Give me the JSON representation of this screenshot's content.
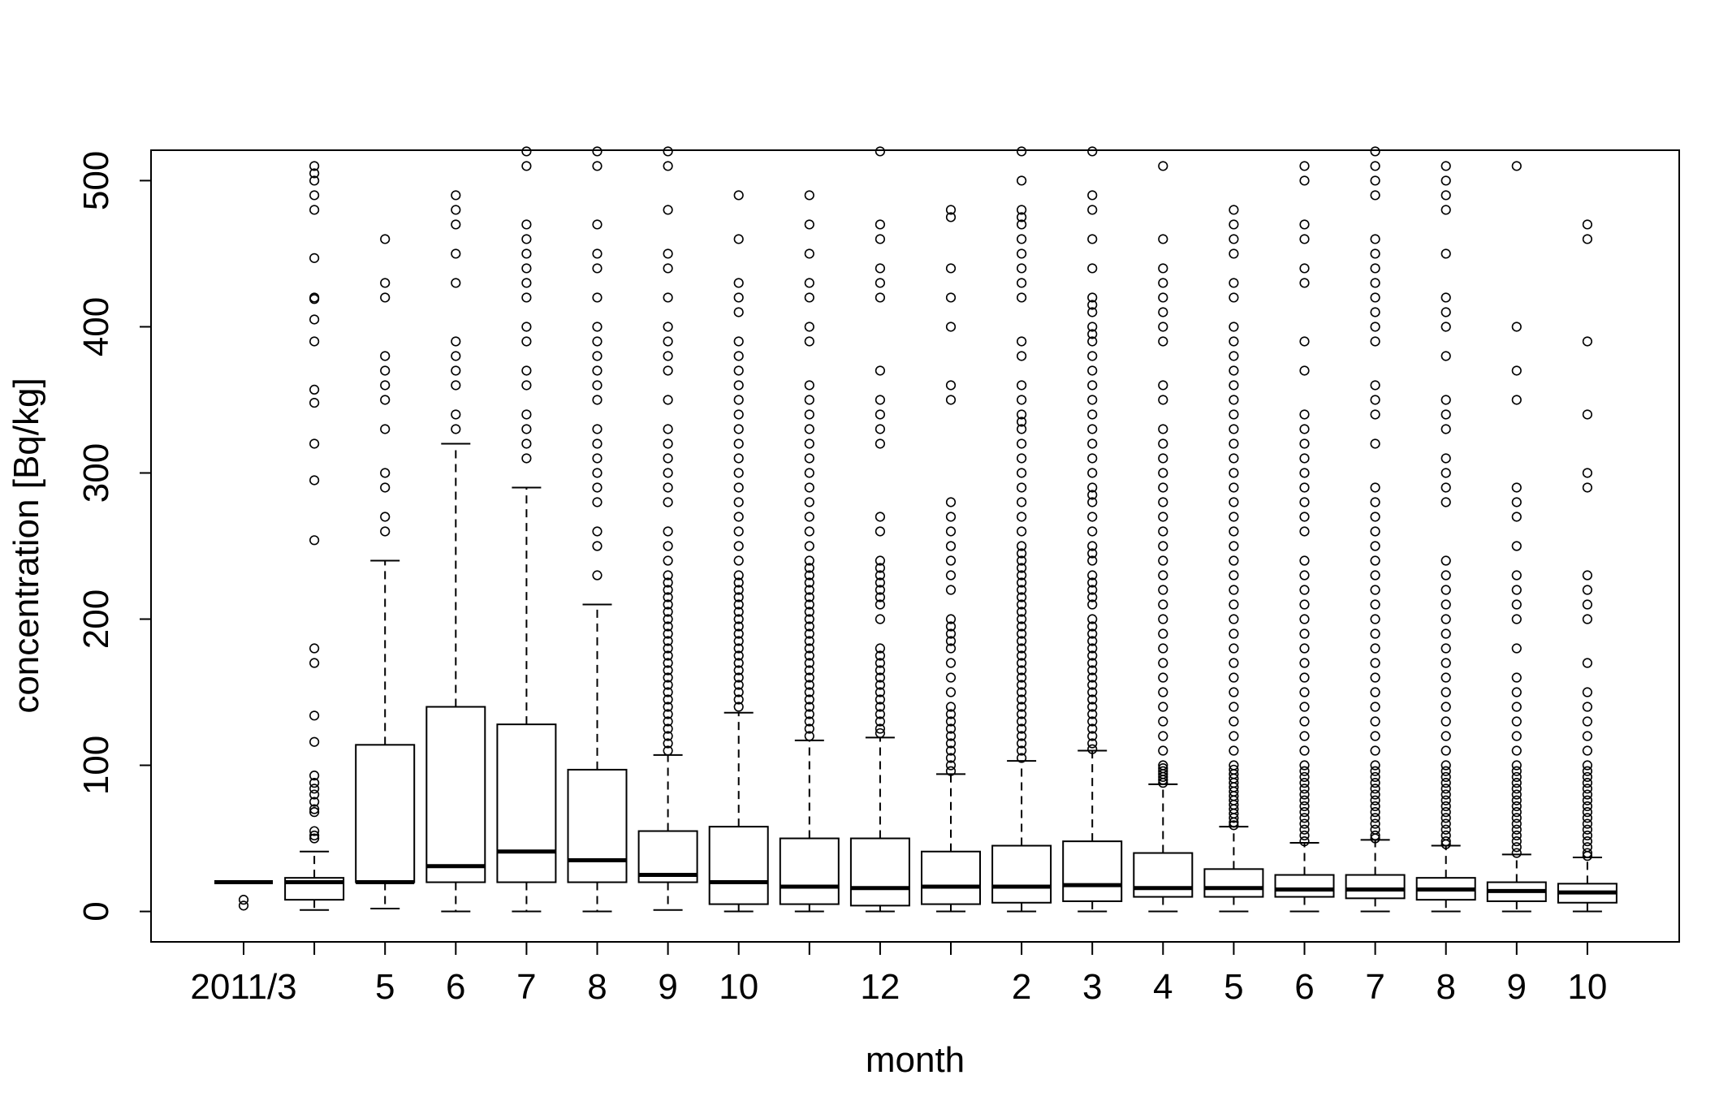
{
  "chart_data": {
    "type": "boxplot",
    "title": "",
    "xlabel": "month",
    "ylabel": "concentration [Bq/kg]",
    "ylim": [
      -20.8,
      520.8
    ],
    "yticks": [
      0,
      100,
      200,
      300,
      400,
      500
    ],
    "grid": false,
    "tick_labels": [
      "2011/3",
      "",
      "5",
      "6",
      "7",
      "8",
      "9",
      "10",
      "",
      "12",
      "",
      "2",
      "3",
      "4",
      "5",
      "6",
      "7",
      "8",
      "9",
      "10"
    ],
    "stats_order": [
      "whisker_low",
      "q1",
      "median",
      "q3",
      "whisker_high"
    ],
    "boxes": [
      {
        "stats": [
          20,
          20,
          20,
          20,
          20
        ],
        "outliers": [
          4,
          8
        ]
      },
      {
        "stats": [
          1,
          8,
          20,
          23,
          41
        ],
        "outliers": [
          510,
          505,
          500,
          490,
          480,
          447,
          420,
          419,
          405,
          390,
          357,
          348,
          320,
          295,
          254,
          180,
          170,
          134,
          116,
          93,
          88,
          84,
          80,
          75,
          70,
          68,
          55,
          52,
          50
        ]
      },
      {
        "stats": [
          2,
          20,
          20,
          114,
          240
        ],
        "outliers": [
          460,
          430,
          420,
          380,
          370,
          360,
          350,
          330,
          300,
          290,
          270,
          260
        ]
      },
      {
        "stats": [
          0,
          20,
          31,
          140,
          320
        ],
        "outliers": [
          490,
          480,
          470,
          450,
          430,
          390,
          380,
          370,
          360,
          340,
          330
        ]
      },
      {
        "stats": [
          0,
          20,
          41,
          128,
          290
        ],
        "outliers": [
          520,
          510,
          470,
          460,
          450,
          440,
          430,
          420,
          400,
          390,
          370,
          360,
          340,
          330,
          320,
          310
        ]
      },
      {
        "stats": [
          0,
          20,
          35,
          97,
          210
        ],
        "outliers": [
          520,
          510,
          470,
          450,
          440,
          420,
          400,
          390,
          380,
          370,
          360,
          350,
          330,
          320,
          310,
          300,
          290,
          280,
          260,
          250,
          230
        ]
      },
      {
        "stats": [
          1,
          20,
          25,
          55,
          107
        ],
        "outliers": [
          520,
          510,
          480,
          450,
          440,
          420,
          400,
          390,
          380,
          370,
          350,
          330,
          320,
          310,
          300,
          290,
          280,
          260,
          250,
          240,
          230,
          225,
          220,
          215,
          210,
          205,
          200,
          195,
          190,
          185,
          180,
          175,
          170,
          165,
          160,
          155,
          150,
          145,
          140,
          135,
          130,
          125,
          120,
          115,
          110
        ]
      },
      {
        "stats": [
          0,
          5,
          20,
          58,
          136
        ],
        "outliers": [
          490,
          460,
          430,
          420,
          410,
          390,
          380,
          370,
          360,
          350,
          340,
          330,
          320,
          310,
          300,
          290,
          280,
          270,
          260,
          250,
          240,
          230,
          225,
          220,
          215,
          210,
          205,
          200,
          195,
          190,
          185,
          180,
          175,
          170,
          165,
          160,
          155,
          150,
          145,
          140
        ]
      },
      {
        "stats": [
          0,
          5,
          17,
          50,
          117
        ],
        "outliers": [
          490,
          470,
          450,
          430,
          420,
          400,
          390,
          360,
          350,
          340,
          330,
          320,
          310,
          300,
          290,
          280,
          270,
          260,
          250,
          240,
          235,
          230,
          225,
          220,
          215,
          210,
          205,
          200,
          195,
          190,
          185,
          180,
          175,
          170,
          165,
          160,
          155,
          150,
          145,
          140,
          135,
          130,
          125,
          120
        ]
      },
      {
        "stats": [
          0,
          4,
          16,
          50,
          119
        ],
        "outliers": [
          520,
          470,
          460,
          440,
          430,
          420,
          370,
          350,
          340,
          330,
          320,
          270,
          260,
          240,
          235,
          230,
          225,
          220,
          215,
          210,
          200,
          180,
          175,
          170,
          165,
          160,
          155,
          150,
          145,
          140,
          135,
          130,
          125,
          122
        ]
      },
      {
        "stats": [
          0,
          5,
          17,
          41,
          94
        ],
        "outliers": [
          480,
          475,
          440,
          420,
          400,
          360,
          350,
          280,
          270,
          260,
          250,
          240,
          230,
          220,
          200,
          195,
          190,
          185,
          180,
          170,
          160,
          150,
          140,
          135,
          130,
          125,
          120,
          115,
          110,
          105,
          100,
          96
        ]
      },
      {
        "stats": [
          0,
          6,
          17,
          45,
          103
        ],
        "outliers": [
          520,
          500,
          480,
          475,
          470,
          460,
          450,
          440,
          430,
          420,
          390,
          380,
          360,
          350,
          340,
          335,
          330,
          320,
          310,
          300,
          290,
          280,
          270,
          260,
          250,
          245,
          240,
          235,
          230,
          225,
          220,
          215,
          210,
          205,
          200,
          195,
          190,
          185,
          180,
          175,
          170,
          165,
          160,
          155,
          150,
          145,
          140,
          135,
          130,
          125,
          120,
          115,
          110,
          105
        ]
      },
      {
        "stats": [
          0,
          7,
          18,
          48,
          110
        ],
        "outliers": [
          520,
          490,
          480,
          460,
          440,
          420,
          415,
          410,
          400,
          395,
          390,
          380,
          370,
          360,
          350,
          340,
          330,
          320,
          310,
          300,
          290,
          285,
          280,
          270,
          260,
          250,
          245,
          240,
          230,
          225,
          220,
          215,
          210,
          200,
          195,
          190,
          185,
          180,
          175,
          170,
          165,
          160,
          155,
          150,
          145,
          140,
          135,
          130,
          125,
          120,
          115,
          111
        ]
      },
      {
        "stats": [
          0,
          10,
          16,
          40,
          87
        ],
        "outliers": [
          510,
          460,
          440,
          430,
          420,
          410,
          400,
          390,
          360,
          350,
          330,
          320,
          310,
          300,
          290,
          280,
          270,
          260,
          250,
          240,
          230,
          220,
          210,
          200,
          190,
          180,
          170,
          160,
          150,
          140,
          130,
          120,
          110,
          100,
          98,
          96,
          94,
          92,
          90,
          88
        ]
      },
      {
        "stats": [
          0,
          10,
          16,
          29,
          58
        ],
        "outliers": [
          480,
          470,
          460,
          450,
          430,
          420,
          400,
          390,
          380,
          370,
          360,
          350,
          340,
          330,
          320,
          310,
          300,
          290,
          280,
          270,
          260,
          250,
          240,
          230,
          220,
          210,
          200,
          190,
          180,
          170,
          160,
          150,
          140,
          130,
          120,
          110,
          100,
          97,
          94,
          91,
          88,
          85,
          82,
          79,
          76,
          73,
          70,
          67,
          64,
          61,
          59
        ]
      },
      {
        "stats": [
          0,
          10,
          15,
          25,
          47
        ],
        "outliers": [
          510,
          500,
          470,
          460,
          440,
          430,
          390,
          370,
          340,
          330,
          320,
          310,
          300,
          290,
          280,
          270,
          260,
          240,
          230,
          220,
          210,
          200,
          190,
          180,
          170,
          160,
          150,
          140,
          130,
          120,
          110,
          100,
          96,
          92,
          88,
          84,
          80,
          76,
          72,
          68,
          64,
          60,
          56,
          52,
          48
        ]
      },
      {
        "stats": [
          0,
          9,
          15,
          25,
          49
        ],
        "outliers": [
          520,
          510,
          500,
          490,
          460,
          450,
          440,
          430,
          420,
          410,
          400,
          390,
          360,
          350,
          340,
          320,
          290,
          280,
          270,
          260,
          250,
          240,
          230,
          220,
          210,
          200,
          190,
          180,
          170,
          160,
          150,
          140,
          130,
          120,
          110,
          100,
          96,
          92,
          88,
          84,
          80,
          76,
          72,
          68,
          64,
          60,
          56,
          52,
          50
        ]
      },
      {
        "stats": [
          0,
          8,
          15,
          23,
          45
        ],
        "outliers": [
          510,
          500,
          490,
          480,
          450,
          420,
          410,
          400,
          380,
          350,
          340,
          330,
          310,
          300,
          290,
          280,
          240,
          230,
          220,
          210,
          200,
          190,
          180,
          170,
          160,
          150,
          140,
          130,
          120,
          110,
          100,
          96,
          92,
          88,
          84,
          80,
          76,
          72,
          68,
          64,
          60,
          56,
          52,
          48,
          46
        ]
      },
      {
        "stats": [
          0,
          7,
          14,
          20,
          39
        ],
        "outliers": [
          510,
          400,
          370,
          350,
          290,
          280,
          270,
          250,
          230,
          220,
          210,
          200,
          180,
          160,
          150,
          140,
          130,
          120,
          110,
          100,
          96,
          92,
          88,
          84,
          80,
          76,
          72,
          68,
          64,
          60,
          56,
          52,
          48,
          44,
          40
        ]
      },
      {
        "stats": [
          0,
          6,
          13,
          19,
          37
        ],
        "outliers": [
          470,
          460,
          390,
          340,
          300,
          290,
          230,
          220,
          210,
          200,
          170,
          150,
          140,
          130,
          120,
          110,
          100,
          96,
          92,
          88,
          84,
          80,
          76,
          72,
          68,
          64,
          60,
          56,
          52,
          48,
          44,
          40,
          38
        ]
      }
    ],
    "colors": {
      "stroke": "#000000",
      "background": "#ffffff"
    }
  }
}
